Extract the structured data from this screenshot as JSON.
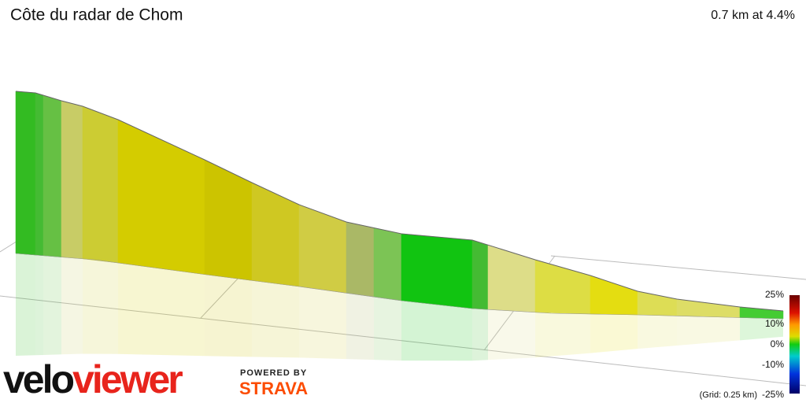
{
  "header": {
    "title": "Côte du radar de Chom",
    "summary": "0.7 km at 4.4%"
  },
  "legend": {
    "labels": [
      "25%",
      "10%",
      "0%",
      "-10%",
      "-25%"
    ],
    "grid_note": "(Grid: 0.25 km)"
  },
  "branding": {
    "logo": "veloviewer",
    "powered_by": "POWERED BY",
    "partner": "STRAVA"
  }
}
